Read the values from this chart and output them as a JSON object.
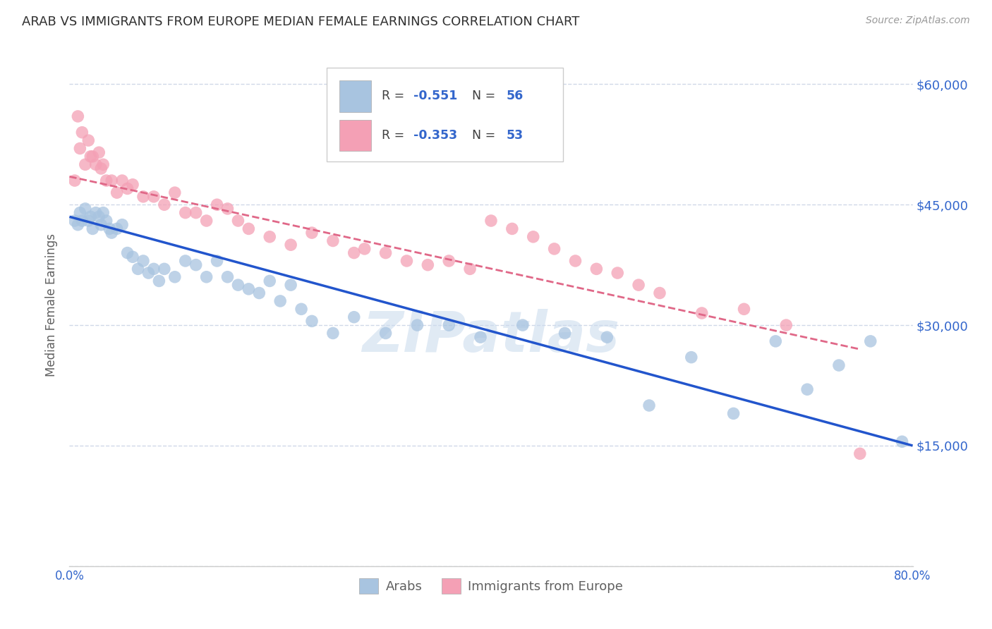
{
  "title": "ARAB VS IMMIGRANTS FROM EUROPE MEDIAN FEMALE EARNINGS CORRELATION CHART",
  "source": "Source: ZipAtlas.com",
  "ylabel": "Median Female Earnings",
  "yticks": [
    0,
    15000,
    30000,
    45000,
    60000
  ],
  "ytick_labels": [
    "",
    "$15,000",
    "$30,000",
    "$45,000",
    "$60,000"
  ],
  "xmin": 0.0,
  "xmax": 80.0,
  "ymin": 0,
  "ymax": 65000,
  "arab_R": -0.551,
  "arab_N": 56,
  "europe_R": -0.353,
  "europe_N": 53,
  "arab_color": "#a8c4e0",
  "europe_color": "#f4a0b5",
  "arab_line_color": "#2255cc",
  "europe_line_color": "#e06888",
  "background_color": "#ffffff",
  "grid_color": "#d0d8e8",
  "title_color": "#303030",
  "watermark_color": "#ccdcee",
  "axis_label_color": "#3366cc",
  "arab_scatter_x": [
    0.5,
    0.8,
    1.0,
    1.2,
    1.5,
    1.8,
    2.0,
    2.2,
    2.5,
    2.8,
    3.0,
    3.2,
    3.5,
    3.8,
    4.0,
    4.5,
    5.0,
    5.5,
    6.0,
    6.5,
    7.0,
    7.5,
    8.0,
    8.5,
    9.0,
    10.0,
    11.0,
    12.0,
    13.0,
    14.0,
    15.0,
    16.0,
    17.0,
    18.0,
    19.0,
    20.0,
    21.0,
    22.0,
    23.0,
    25.0,
    27.0,
    30.0,
    33.0,
    36.0,
    39.0,
    43.0,
    47.0,
    51.0,
    55.0,
    59.0,
    63.0,
    67.0,
    70.0,
    73.0,
    76.0,
    79.0
  ],
  "arab_scatter_y": [
    43000,
    42500,
    44000,
    43000,
    44500,
    43000,
    43500,
    42000,
    44000,
    43500,
    42500,
    44000,
    43000,
    42000,
    41500,
    42000,
    42500,
    39000,
    38500,
    37000,
    38000,
    36500,
    37000,
    35500,
    37000,
    36000,
    38000,
    37500,
    36000,
    38000,
    36000,
    35000,
    34500,
    34000,
    35500,
    33000,
    35000,
    32000,
    30500,
    29000,
    31000,
    29000,
    30000,
    30000,
    28500,
    30000,
    29000,
    28500,
    20000,
    26000,
    19000,
    28000,
    22000,
    25000,
    28000,
    15500
  ],
  "europe_scatter_x": [
    0.5,
    0.8,
    1.0,
    1.2,
    1.5,
    1.8,
    2.0,
    2.2,
    2.5,
    2.8,
    3.0,
    3.2,
    3.5,
    4.0,
    4.5,
    5.0,
    5.5,
    6.0,
    7.0,
    8.0,
    9.0,
    10.0,
    11.0,
    12.0,
    13.0,
    14.0,
    15.0,
    16.0,
    17.0,
    19.0,
    21.0,
    23.0,
    25.0,
    27.0,
    28.0,
    30.0,
    32.0,
    34.0,
    36.0,
    38.0,
    40.0,
    42.0,
    44.0,
    46.0,
    48.0,
    50.0,
    52.0,
    54.0,
    56.0,
    60.0,
    64.0,
    68.0,
    75.0
  ],
  "europe_scatter_y": [
    48000,
    56000,
    52000,
    54000,
    50000,
    53000,
    51000,
    51000,
    50000,
    51500,
    49500,
    50000,
    48000,
    48000,
    46500,
    48000,
    47000,
    47500,
    46000,
    46000,
    45000,
    46500,
    44000,
    44000,
    43000,
    45000,
    44500,
    43000,
    42000,
    41000,
    40000,
    41500,
    40500,
    39000,
    39500,
    39000,
    38000,
    37500,
    38000,
    37000,
    43000,
    42000,
    41000,
    39500,
    38000,
    37000,
    36500,
    35000,
    34000,
    31500,
    32000,
    30000,
    14000
  ]
}
